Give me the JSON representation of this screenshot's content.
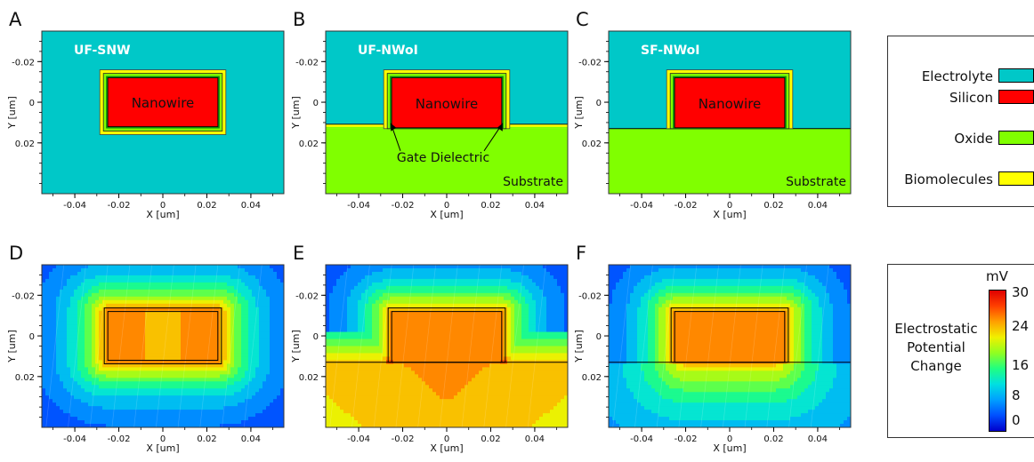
{
  "panels": [
    {
      "letter": "A",
      "name": "UF-SNW",
      "substrate": false,
      "oxide_substrate": false,
      "field": "A"
    },
    {
      "letter": "B",
      "name": "UF-NWoI",
      "substrate": true,
      "oxide_substrate": true,
      "field": "B"
    },
    {
      "letter": "C",
      "name": "SF-NWoI",
      "substrate": true,
      "oxide_substrate": false,
      "field": "C"
    },
    {
      "letter": "D",
      "field": "A"
    },
    {
      "letter": "E",
      "field": "B"
    },
    {
      "letter": "F",
      "field": "C"
    }
  ],
  "labels": {
    "nanowire": "Nanowire",
    "substrate": "Substrate",
    "gate_dielectric": "Gate Dielectric"
  },
  "axes": {
    "xlabel": "X [um]",
    "ylabel": "Y [um]",
    "x_ticks": [
      "-0.04",
      "-0.02",
      "0",
      "0.02",
      "0.04"
    ],
    "x_tick_values": [
      -0.04,
      -0.02,
      0,
      0.02,
      0.04
    ],
    "y_ticks": [
      "-0.02",
      "0",
      "0.02"
    ],
    "y_tick_values": [
      -0.02,
      0,
      0.02
    ],
    "xlim": [
      -0.055,
      0.055
    ],
    "ylim": [
      -0.035,
      0.045
    ]
  },
  "geometry_um": {
    "nanowire_x": [
      -0.025,
      0.025
    ],
    "nanowire_y": [
      -0.012,
      0.012
    ],
    "substrate_top_y": 0.013
  },
  "material_legend": [
    {
      "label": "Electrolyte",
      "color": "#00c8c8"
    },
    {
      "label": "Silicon",
      "color": "#ff0000"
    },
    {
      "label": "Oxide",
      "color": "#80ff00"
    },
    {
      "label": "Biomolecules",
      "color": "#ffff00"
    }
  ],
  "colorbar": {
    "title": [
      "Electrostatic",
      "Potential",
      "Change"
    ],
    "unit": "mV",
    "ticks": [
      "30",
      "24",
      "16",
      "8",
      "0"
    ],
    "tick_values": [
      30,
      24,
      16,
      8,
      0
    ],
    "range": [
      0,
      30
    ]
  },
  "chart_data": [
    {
      "type": "heatmap",
      "panel": "D",
      "xlabel": "X [um]",
      "ylabel": "Y [um]",
      "xlim": [
        -0.055,
        0.055
      ],
      "ylim": [
        -0.035,
        0.045
      ],
      "z_range_mV": [
        0,
        30
      ],
      "peak_mV": 24
    },
    {
      "type": "heatmap",
      "panel": "E",
      "xlabel": "X [um]",
      "ylabel": "Y [um]",
      "xlim": [
        -0.055,
        0.055
      ],
      "ylim": [
        -0.035,
        0.045
      ],
      "z_range_mV": [
        0,
        30
      ],
      "peak_mV": 30
    },
    {
      "type": "heatmap",
      "panel": "F",
      "xlabel": "X [um]",
      "ylabel": "Y [um]",
      "xlim": [
        -0.055,
        0.055
      ],
      "ylim": [
        -0.035,
        0.045
      ],
      "z_range_mV": [
        0,
        30
      ],
      "peak_mV": 24
    }
  ]
}
